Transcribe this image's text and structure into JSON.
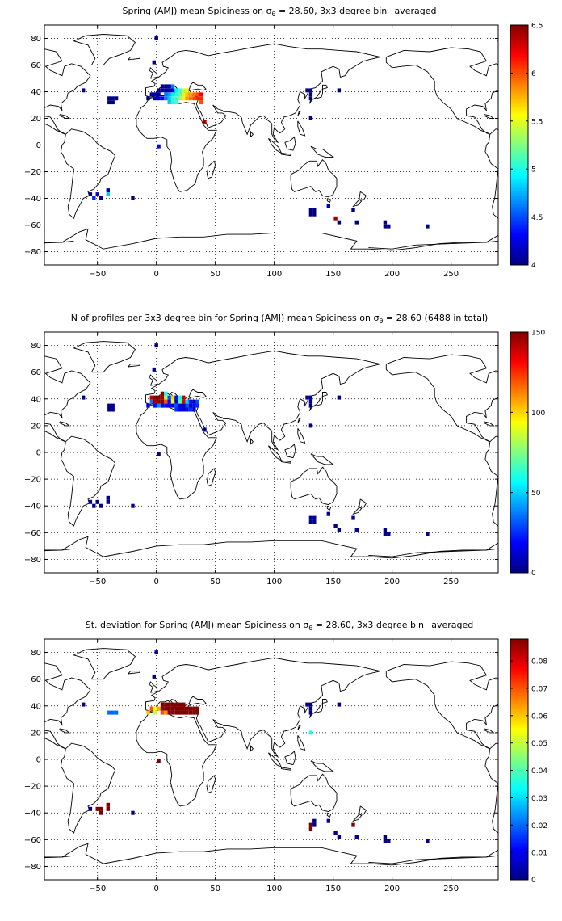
{
  "chart_data": [
    {
      "type": "heatmap",
      "title": "Spring (AMJ) mean Spiciness on σθ = 28.60, 3x3 degree bin−averaged",
      "title_parts": [
        "Spring (AMJ) mean Spiciness on σ",
        "θ",
        " = 28.60, 3x3 degree bin−averaged"
      ],
      "xlim": [
        -95,
        290
      ],
      "ylim": [
        -90,
        90
      ],
      "xticks": [
        -50,
        0,
        50,
        100,
        150,
        200,
        250
      ],
      "yticks": [
        80,
        60,
        40,
        20,
        0,
        -20,
        -40,
        -60,
        -80
      ],
      "grid": true,
      "colorbar": {
        "min": 4,
        "max": 6.5,
        "ticks": [
          "6.5",
          "6",
          "5.5",
          "5",
          "4.5",
          "4"
        ]
      },
      "cells": [
        [
          0,
          80,
          4.0
        ],
        [
          -2,
          62,
          4.0
        ],
        [
          -62,
          41,
          4.0
        ],
        [
          -40,
          35,
          4.0
        ],
        [
          -37,
          35,
          4.0
        ],
        [
          -34,
          35,
          4.0
        ],
        [
          -40,
          32,
          4.0
        ],
        [
          -37,
          32,
          4.0
        ],
        [
          -7,
          35,
          4.0
        ],
        [
          -4,
          38,
          4.1
        ],
        [
          -1,
          38,
          4.1
        ],
        [
          2,
          38,
          4.1
        ],
        [
          2,
          41,
          4.0
        ],
        [
          5,
          41,
          4.1
        ],
        [
          8,
          41,
          4.1
        ],
        [
          11,
          41,
          4.1
        ],
        [
          5,
          44,
          4.0
        ],
        [
          8,
          44,
          4.0
        ],
        [
          11,
          44,
          4.1
        ],
        [
          14,
          41,
          4.2
        ],
        [
          -1,
          35,
          4.1
        ],
        [
          2,
          35,
          4.2
        ],
        [
          5,
          35,
          4.3
        ],
        [
          8,
          38,
          4.6
        ],
        [
          11,
          38,
          4.7
        ],
        [
          14,
          38,
          4.9
        ],
        [
          17,
          38,
          5.0
        ],
        [
          20,
          38,
          5.2
        ],
        [
          23,
          38,
          5.5
        ],
        [
          26,
          38,
          5.7
        ],
        [
          29,
          38,
          5.8
        ],
        [
          32,
          38,
          5.9
        ],
        [
          35,
          38,
          6.0
        ],
        [
          8,
          35,
          4.6
        ],
        [
          11,
          35,
          4.8
        ],
        [
          14,
          35,
          5.0
        ],
        [
          17,
          35,
          5.1
        ],
        [
          20,
          35,
          5.3
        ],
        [
          23,
          35,
          5.6
        ],
        [
          26,
          35,
          5.8
        ],
        [
          29,
          35,
          5.9
        ],
        [
          32,
          35,
          6.0
        ],
        [
          35,
          35,
          6.1
        ],
        [
          14,
          44,
          4.6
        ],
        [
          17,
          41,
          4.9
        ],
        [
          20,
          41,
          5.1
        ],
        [
          23,
          41,
          5.4
        ],
        [
          26,
          41,
          5.6
        ],
        [
          11,
          32,
          4.8
        ],
        [
          14,
          32,
          5.0
        ],
        [
          17,
          32,
          5.1
        ],
        [
          38,
          32,
          6.0
        ],
        [
          38,
          35,
          6.1
        ],
        [
          38,
          38,
          6.2
        ],
        [
          41,
          17,
          6.4
        ],
        [
          2,
          -1,
          4.3
        ],
        [
          128,
          41,
          4.0
        ],
        [
          131,
          41,
          4.0
        ],
        [
          131,
          38,
          4.0
        ],
        [
          131,
          35,
          4.0
        ],
        [
          155,
          41,
          4.0
        ],
        [
          131,
          20,
          4.0
        ],
        [
          -56,
          -37,
          4.0
        ],
        [
          -53,
          -40,
          4.4
        ],
        [
          -50,
          -37,
          4.2
        ],
        [
          -47,
          -40,
          4.0
        ],
        [
          -41,
          -37,
          4.8
        ],
        [
          -41,
          -34,
          4.1
        ],
        [
          -20,
          -40,
          4.0
        ],
        [
          131,
          -49,
          4.0
        ],
        [
          134,
          -49,
          4.0
        ],
        [
          131,
          -52,
          4.0
        ],
        [
          134,
          -52,
          4.0
        ],
        [
          146,
          -46,
          4.1
        ],
        [
          152,
          -55,
          6.4
        ],
        [
          155,
          -58,
          4.0
        ],
        [
          167,
          -49,
          4.0
        ],
        [
          170,
          -58,
          4.0
        ],
        [
          194,
          -58,
          4.0
        ],
        [
          197,
          -61,
          4.0
        ],
        [
          194,
          -61,
          4.0
        ],
        [
          230,
          -61,
          4.0
        ]
      ]
    },
    {
      "type": "heatmap",
      "title": "N of profiles per 3x3 degree bin for Spring (AMJ) mean Spiciness on σθ = 28.60 (6488 in total)",
      "title_parts": [
        "N of profiles per 3x3 degree bin for Spring (AMJ) mean Spiciness on σ",
        "θ",
        " = 28.60 (6488 in total)"
      ],
      "xlim": [
        -95,
        290
      ],
      "ylim": [
        -90,
        90
      ],
      "xticks": [
        -50,
        0,
        50,
        100,
        150,
        200,
        250
      ],
      "yticks": [
        80,
        60,
        40,
        20,
        0,
        -20,
        -40,
        -60,
        -80
      ],
      "grid": true,
      "colorbar": {
        "min": 0,
        "max": 150,
        "ticks": [
          "150",
          "100",
          "50",
          "0"
        ]
      },
      "cells": [
        [
          0,
          80,
          2
        ],
        [
          -2,
          62,
          3
        ],
        [
          -62,
          41,
          2
        ],
        [
          -40,
          35,
          3
        ],
        [
          -37,
          35,
          3
        ],
        [
          -40,
          32,
          2
        ],
        [
          -37,
          32,
          2
        ],
        [
          -7,
          35,
          15
        ],
        [
          -4,
          38,
          35
        ],
        [
          -4,
          41,
          140
        ],
        [
          -1,
          38,
          145
        ],
        [
          -1,
          41,
          150
        ],
        [
          2,
          38,
          150
        ],
        [
          2,
          41,
          150
        ],
        [
          5,
          38,
          150
        ],
        [
          5,
          41,
          145
        ],
        [
          5,
          44,
          150
        ],
        [
          8,
          44,
          60
        ],
        [
          8,
          41,
          80
        ],
        [
          8,
          38,
          120
        ],
        [
          11,
          41,
          30
        ],
        [
          11,
          38,
          20
        ],
        [
          14,
          41,
          100
        ],
        [
          14,
          38,
          90
        ],
        [
          17,
          41,
          20
        ],
        [
          17,
          38,
          10
        ],
        [
          20,
          41,
          60
        ],
        [
          20,
          38,
          70
        ],
        [
          23,
          41,
          140
        ],
        [
          23,
          38,
          135
        ],
        [
          26,
          38,
          50
        ],
        [
          29,
          38,
          20
        ],
        [
          32,
          38,
          10
        ],
        [
          35,
          38,
          30
        ],
        [
          -1,
          35,
          20
        ],
        [
          2,
          35,
          40
        ],
        [
          5,
          35,
          10
        ],
        [
          8,
          35,
          20
        ],
        [
          11,
          35,
          15
        ],
        [
          14,
          35,
          10
        ],
        [
          17,
          35,
          30
        ],
        [
          20,
          35,
          15
        ],
        [
          23,
          35,
          10
        ],
        [
          26,
          35,
          30
        ],
        [
          29,
          35,
          12
        ],
        [
          32,
          35,
          20
        ],
        [
          35,
          35,
          25
        ],
        [
          17,
          32,
          25
        ],
        [
          20,
          32,
          15
        ],
        [
          23,
          32,
          10
        ],
        [
          26,
          32,
          20
        ],
        [
          29,
          32,
          25
        ],
        [
          32,
          32,
          10
        ],
        [
          41,
          17,
          3
        ],
        [
          2,
          -1,
          3
        ],
        [
          128,
          41,
          3
        ],
        [
          131,
          41,
          2
        ],
        [
          131,
          38,
          3
        ],
        [
          131,
          35,
          2
        ],
        [
          155,
          41,
          2
        ],
        [
          131,
          20,
          2
        ],
        [
          -56,
          -37,
          2
        ],
        [
          -53,
          -40,
          3
        ],
        [
          -50,
          -37,
          2
        ],
        [
          -47,
          -40,
          3
        ],
        [
          -41,
          -37,
          5
        ],
        [
          -41,
          -34,
          2
        ],
        [
          -20,
          -40,
          2
        ],
        [
          131,
          -49,
          3
        ],
        [
          134,
          -49,
          2
        ],
        [
          131,
          -52,
          3
        ],
        [
          134,
          -52,
          2
        ],
        [
          146,
          -46,
          2
        ],
        [
          152,
          -55,
          2
        ],
        [
          155,
          -58,
          2
        ],
        [
          167,
          -49,
          2
        ],
        [
          170,
          -58,
          2
        ],
        [
          194,
          -58,
          3
        ],
        [
          197,
          -61,
          2
        ],
        [
          194,
          -61,
          2
        ],
        [
          230,
          -61,
          2
        ]
      ]
    },
    {
      "type": "heatmap",
      "title": "St. deviation for Spring (AMJ) mean Spiciness on σθ = 28.60, 3x3 degree bin−averaged",
      "title_parts": [
        "St. deviation for Spring (AMJ) mean Spiciness on σ",
        "θ",
        " = 28.60, 3x3 degree bin−averaged"
      ],
      "xlim": [
        -95,
        290
      ],
      "ylim": [
        -90,
        90
      ],
      "xticks": [
        -50,
        0,
        50,
        100,
        150,
        200,
        250
      ],
      "yticks": [
        80,
        60,
        40,
        20,
        0,
        -20,
        -40,
        -60,
        -80
      ],
      "grid": true,
      "colorbar": {
        "min": 0,
        "max": 0.088,
        "ticks": [
          "0.08",
          "0.07",
          "0.06",
          "0.05",
          "0.04",
          "0.03",
          "0.02",
          "0.01",
          "0"
        ]
      },
      "cells": [
        [
          0,
          80,
          0.0
        ],
        [
          -2,
          62,
          0.0
        ],
        [
          -62,
          41,
          0.0
        ],
        [
          -40,
          35,
          0.02
        ],
        [
          -37,
          35,
          0.02
        ],
        [
          -34,
          35,
          0.02
        ],
        [
          -7,
          35,
          0.06
        ],
        [
          -4,
          38,
          0.07
        ],
        [
          -1,
          38,
          0.055
        ],
        [
          -1,
          35,
          0.05
        ],
        [
          2,
          38,
          0.062
        ],
        [
          5,
          38,
          0.088
        ],
        [
          5,
          41,
          0.088
        ],
        [
          8,
          38,
          0.088
        ],
        [
          8,
          41,
          0.088
        ],
        [
          11,
          38,
          0.088
        ],
        [
          11,
          41,
          0.088
        ],
        [
          14,
          38,
          0.088
        ],
        [
          14,
          41,
          0.088
        ],
        [
          17,
          38,
          0.088
        ],
        [
          17,
          41,
          0.088
        ],
        [
          20,
          38,
          0.088
        ],
        [
          20,
          41,
          0.088
        ],
        [
          23,
          38,
          0.088
        ],
        [
          23,
          41,
          0.088
        ],
        [
          11,
          35,
          0.088
        ],
        [
          14,
          35,
          0.088
        ],
        [
          17,
          35,
          0.088
        ],
        [
          20,
          35,
          0.088
        ],
        [
          23,
          35,
          0.088
        ],
        [
          26,
          35,
          0.088
        ],
        [
          29,
          35,
          0.088
        ],
        [
          32,
          35,
          0.088
        ],
        [
          35,
          35,
          0.088
        ],
        [
          26,
          38,
          0.088
        ],
        [
          29,
          38,
          0.088
        ],
        [
          32,
          38,
          0.088
        ],
        [
          35,
          38,
          0.088
        ],
        [
          5,
          35,
          0.07
        ],
        [
          8,
          35,
          0.065
        ],
        [
          2,
          -1,
          0.088
        ],
        [
          128,
          41,
          0.0
        ],
        [
          131,
          41,
          0.0
        ],
        [
          131,
          38,
          0.0
        ],
        [
          131,
          35,
          0.0
        ],
        [
          155,
          41,
          0.0
        ],
        [
          131,
          20,
          0.035
        ],
        [
          -56,
          -37,
          0.0
        ],
        [
          -50,
          -37,
          0.088
        ],
        [
          -47,
          -37,
          0.088
        ],
        [
          -47,
          -40,
          0.088
        ],
        [
          -41,
          -37,
          0.088
        ],
        [
          -41,
          -34,
          0.088
        ],
        [
          -20,
          -40,
          0.0
        ],
        [
          131,
          -49,
          0.088
        ],
        [
          134,
          -49,
          0.0
        ],
        [
          131,
          -52,
          0.088
        ],
        [
          134,
          -46,
          0.0
        ],
        [
          146,
          -46,
          0.0
        ],
        [
          152,
          -55,
          0.0
        ],
        [
          155,
          -58,
          0.0
        ],
        [
          167,
          -49,
          0.088
        ],
        [
          170,
          -58,
          0.0
        ],
        [
          194,
          -58,
          0.0
        ],
        [
          197,
          -61,
          0.0
        ],
        [
          194,
          -61,
          0.0
        ],
        [
          230,
          -61,
          0.0
        ]
      ]
    }
  ]
}
